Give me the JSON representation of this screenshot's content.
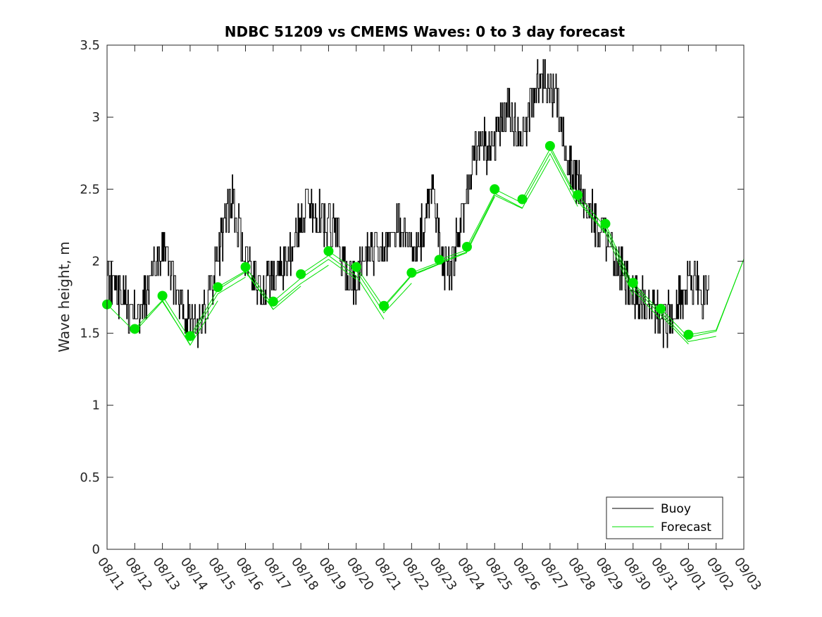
{
  "chart_data": {
    "type": "line",
    "title": "NDBC 51209 vs CMEMS Waves: 0 to 3 day forecast",
    "xlabel": "",
    "ylabel": "Wave height, m",
    "ylim": [
      0,
      3.5
    ],
    "yticks": [
      "0",
      "0.5",
      "1",
      "1.5",
      "2",
      "2.5",
      "3",
      "3.5"
    ],
    "xticks": [
      "08/11",
      "08/12",
      "08/13",
      "08/14",
      "08/15",
      "08/16",
      "08/17",
      "08/18",
      "08/19",
      "08/20",
      "08/21",
      "08/22",
      "08/23",
      "08/24",
      "08/25",
      "08/26",
      "08/27",
      "08/28",
      "08/29",
      "08/30",
      "08/31",
      "09/01",
      "09/02",
      "09/03"
    ],
    "grid": false,
    "legend": {
      "placement": "bottom-right",
      "entries": [
        {
          "name": "Buoy",
          "color": "#000000"
        },
        {
          "name": "Forecast",
          "color": "#00e000"
        }
      ]
    },
    "colors": {
      "buoy": "#000000",
      "forecast": "#00e000",
      "markers": "#00e600"
    },
    "series": [
      {
        "name": "Buoy",
        "x": [
          "08/11",
          "08/11.25",
          "08/11.5",
          "08/11.75",
          "08/12",
          "08/12.25",
          "08/12.5",
          "08/12.75",
          "08/13",
          "08/13.25",
          "08/13.5",
          "08/13.75",
          "08/14",
          "08/14.25",
          "08/14.5",
          "08/14.75",
          "08/15",
          "08/15.25",
          "08/15.5",
          "08/15.75",
          "08/16",
          "08/16.25",
          "08/16.5",
          "08/16.75",
          "08/17",
          "08/17.25",
          "08/17.5",
          "08/17.75",
          "08/18",
          "08/18.25",
          "08/18.5",
          "08/18.75",
          "08/19",
          "08/19.25",
          "08/19.5",
          "08/19.75",
          "08/20",
          "08/20.25",
          "08/20.5",
          "08/20.75",
          "08/21",
          "08/21.25",
          "08/21.5",
          "08/21.75",
          "08/22",
          "08/22.25",
          "08/22.5",
          "08/22.75",
          "08/23",
          "08/23.25",
          "08/23.5",
          "08/23.75",
          "08/24",
          "08/24.25",
          "08/24.5",
          "08/24.75",
          "08/25",
          "08/25.25",
          "08/25.5",
          "08/25.75",
          "08/26",
          "08/26.25",
          "08/26.5",
          "08/26.75",
          "08/27",
          "08/27.25",
          "08/27.5",
          "08/27.75",
          "08/28",
          "08/28.25",
          "08/28.5",
          "08/28.75",
          "08/29",
          "08/29.25",
          "08/29.5",
          "08/29.75",
          "08/30",
          "08/30.25",
          "08/30.5",
          "08/30.75",
          "08/31",
          "08/31.25",
          "08/31.5",
          "08/31.75",
          "09/01",
          "09/01.25",
          "09/01.5",
          "09/01.75"
        ],
        "values": [
          1.9,
          1.8,
          1.75,
          1.7,
          1.65,
          1.7,
          1.8,
          2.0,
          2.05,
          1.95,
          1.8,
          1.7,
          1.6,
          1.55,
          1.65,
          1.8,
          2.0,
          2.3,
          2.45,
          2.2,
          2.0,
          1.9,
          1.8,
          1.85,
          1.9,
          1.95,
          2.0,
          2.15,
          2.3,
          2.4,
          2.35,
          2.3,
          2.25,
          2.2,
          2.05,
          1.9,
          1.85,
          2.0,
          2.05,
          2.1,
          2.1,
          2.2,
          2.3,
          2.2,
          2.1,
          2.15,
          2.3,
          2.55,
          2.1,
          1.95,
          2.0,
          2.25,
          2.45,
          2.7,
          2.85,
          2.75,
          2.8,
          2.95,
          3.05,
          2.9,
          2.85,
          3.05,
          3.2,
          3.3,
          3.25,
          3.1,
          2.85,
          2.65,
          2.55,
          2.45,
          2.35,
          2.25,
          2.15,
          2.05,
          1.95,
          1.85,
          1.8,
          1.75,
          1.7,
          1.65,
          1.6,
          1.6,
          1.65,
          1.75,
          1.9,
          1.85,
          1.75,
          1.9
        ]
      },
      {
        "name": "Forecast",
        "x": [
          "08/11",
          "08/12",
          "08/13",
          "08/14",
          "08/15",
          "08/16",
          "08/17",
          "08/18",
          "08/19",
          "08/20",
          "08/21",
          "08/22",
          "08/23",
          "08/24",
          "08/25",
          "08/26",
          "08/27",
          "08/28",
          "08/29",
          "08/30",
          "08/31",
          "09/01",
          "09/02",
          "09/03"
        ],
        "values": [
          1.7,
          1.53,
          1.76,
          1.48,
          1.82,
          1.96,
          1.72,
          1.91,
          2.07,
          1.96,
          1.69,
          1.92,
          2.01,
          2.1,
          2.5,
          2.43,
          2.8,
          2.46,
          2.26,
          1.85,
          1.67,
          1.49,
          1.55,
          2.07
        ]
      }
    ],
    "forecast_run_starts": [
      {
        "x": "08/11",
        "value": 1.7
      },
      {
        "x": "08/12",
        "value": 1.53
      },
      {
        "x": "08/13",
        "value": 1.76
      },
      {
        "x": "08/14",
        "value": 1.48
      },
      {
        "x": "08/15",
        "value": 1.82
      },
      {
        "x": "08/16",
        "value": 1.96
      },
      {
        "x": "08/17",
        "value": 1.72
      },
      {
        "x": "08/18",
        "value": 1.91
      },
      {
        "x": "08/19",
        "value": 2.07
      },
      {
        "x": "08/20",
        "value": 1.96
      },
      {
        "x": "08/21",
        "value": 1.69
      },
      {
        "x": "08/22",
        "value": 1.92
      },
      {
        "x": "08/23",
        "value": 2.01
      },
      {
        "x": "08/24",
        "value": 2.1
      },
      {
        "x": "08/25",
        "value": 2.5
      },
      {
        "x": "08/26",
        "value": 2.43
      },
      {
        "x": "08/27",
        "value": 2.8
      },
      {
        "x": "08/28",
        "value": 2.46
      },
      {
        "x": "08/29",
        "value": 2.26
      },
      {
        "x": "08/30",
        "value": 1.85
      },
      {
        "x": "08/31",
        "value": 1.67
      },
      {
        "x": "09/01",
        "value": 1.49
      }
    ]
  }
}
